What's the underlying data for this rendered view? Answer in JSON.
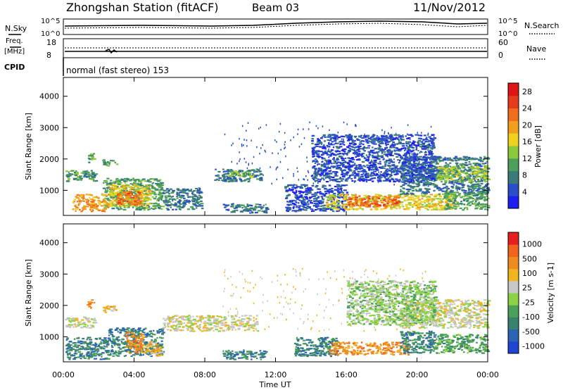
{
  "header": {
    "title": "Zhongshan Station (fitACF)",
    "beam": "Beam 03",
    "date": "11/Nov/2012"
  },
  "top_panels": {
    "nsky_label": "N.Sky",
    "nsearch_label": "N.Search",
    "nave_label": "Nave",
    "freq_label_line1": "Freq.",
    "freq_label_line2": "[MHz]",
    "cpid_label": "CPID",
    "cpid_value": "normal (fast stereo) 153",
    "noise_ticks": [
      "10^5",
      "10^0"
    ],
    "freq_ticks": [
      "18",
      "8"
    ],
    "nave_ticks": [
      "60",
      "0"
    ]
  },
  "axes": {
    "ylabel": "Slant Range [km]",
    "xlabel": "Time UT",
    "y_ticks": [
      "1000",
      "2000",
      "3000",
      "4000"
    ],
    "x_ticks": [
      "00:00",
      "04:00",
      "08:00",
      "12:00",
      "16:00",
      "20:00",
      "00:00"
    ]
  },
  "colorbars": {
    "power": {
      "label": "Power [dB]",
      "ticks": [
        "4",
        "8",
        "12",
        "16",
        "20",
        "24",
        "28"
      ],
      "colors": [
        "#1e1ef0",
        "#2a4ec8",
        "#3a7a78",
        "#4ca05a",
        "#8cc83c",
        "#f0d21e",
        "#f0a01e",
        "#f06e1e",
        "#e63c1e",
        "#e01414"
      ]
    },
    "velocity": {
      "label": "Velocity [m s-1]",
      "ticks": [
        "1000",
        "500",
        "100",
        "25",
        "-25",
        "-100",
        "-500",
        "-1000"
      ],
      "colors": [
        "#1e46d2",
        "#2a64b4",
        "#3a8270",
        "#4aa05a",
        "#8cd246",
        "#c8c8c8",
        "#f0b41e",
        "#f08c1e",
        "#f0641e",
        "#e61e1e"
      ]
    }
  },
  "chart_data": {
    "type": "heatmap",
    "x_range_hours": [
      0,
      24
    ],
    "y_range_km": [
      200,
      4600
    ],
    "power_blobs": [
      {
        "t0": 0.1,
        "t1": 1.8,
        "r0": 1300,
        "r1": 1650,
        "level": 3
      },
      {
        "t0": 0.1,
        "t1": 1.8,
        "r0": 1450,
        "r1": 1550,
        "level": 2
      },
      {
        "t0": 1.3,
        "t1": 1.7,
        "r0": 1900,
        "r1": 2200,
        "level": 3
      },
      {
        "t0": 2.2,
        "t1": 3.0,
        "r0": 1800,
        "r1": 2000,
        "level": 3
      },
      {
        "t0": 2.2,
        "t1": 5.6,
        "r0": 400,
        "r1": 1400,
        "level": 3
      },
      {
        "t0": 2.5,
        "t1": 4.8,
        "r0": 500,
        "r1": 1200,
        "level": 5
      },
      {
        "t0": 3.0,
        "t1": 4.3,
        "r0": 550,
        "r1": 1000,
        "level": 7
      },
      {
        "t0": 0.5,
        "t1": 2.5,
        "r0": 350,
        "r1": 900,
        "level": 6
      },
      {
        "t0": 5.6,
        "t1": 7.8,
        "r0": 400,
        "r1": 1100,
        "level": 2
      },
      {
        "t0": 8.5,
        "t1": 11.2,
        "r0": 1300,
        "r1": 1700,
        "level": 2
      },
      {
        "t0": 9.3,
        "t1": 10.6,
        "r0": 1450,
        "r1": 1650,
        "level": 4
      },
      {
        "t0": 9.0,
        "t1": 11.5,
        "r0": 300,
        "r1": 600,
        "level": 2
      },
      {
        "t0": 12.5,
        "t1": 16.0,
        "r0": 350,
        "r1": 1200,
        "level": 1
      },
      {
        "t0": 14.8,
        "t1": 22.0,
        "r0": 400,
        "r1": 900,
        "level": 5
      },
      {
        "t0": 16.0,
        "t1": 19.0,
        "r0": 500,
        "r1": 850,
        "level": 7
      },
      {
        "t0": 19.0,
        "t1": 24.0,
        "r0": 900,
        "r1": 2100,
        "level": 2
      },
      {
        "t0": 21.0,
        "t1": 24.0,
        "r0": 1300,
        "r1": 1800,
        "level": 4
      },
      {
        "t0": 14.0,
        "t1": 21.0,
        "r0": 1300,
        "r1": 2800,
        "level": 1
      },
      {
        "t0": 21.5,
        "t1": 24.0,
        "r0": 400,
        "r1": 1000,
        "level": 3
      }
    ],
    "velocity_blobs": [
      {
        "t0": 0.1,
        "t1": 1.8,
        "r0": 1300,
        "r1": 1650,
        "level": 5
      },
      {
        "t0": 0.1,
        "t1": 2.5,
        "r0": 300,
        "r1": 1000,
        "level": 2
      },
      {
        "t0": 1.3,
        "t1": 1.7,
        "r0": 1900,
        "r1": 2200,
        "level": 7
      },
      {
        "t0": 2.2,
        "t1": 3.1,
        "r0": 1800,
        "r1": 2000,
        "level": 6
      },
      {
        "t0": 2.5,
        "t1": 5.6,
        "r0": 400,
        "r1": 1300,
        "level": 2
      },
      {
        "t0": 3.5,
        "t1": 4.5,
        "r0": 500,
        "r1": 1200,
        "level": 7
      },
      {
        "t0": 4.6,
        "t1": 5.5,
        "r0": 400,
        "r1": 900,
        "level": 6
      },
      {
        "t0": 5.6,
        "t1": 11.0,
        "r0": 1200,
        "r1": 1700,
        "level": 5
      },
      {
        "t0": 9.0,
        "t1": 11.5,
        "r0": 300,
        "r1": 600,
        "level": 2
      },
      {
        "t0": 13.0,
        "t1": 15.5,
        "r0": 400,
        "r1": 1000,
        "level": 2
      },
      {
        "t0": 15.0,
        "t1": 19.5,
        "r0": 450,
        "r1": 850,
        "level": 7
      },
      {
        "t0": 19.0,
        "t1": 21.0,
        "r0": 500,
        "r1": 1200,
        "level": 2
      },
      {
        "t0": 19.0,
        "t1": 24.0,
        "r0": 1300,
        "r1": 2200,
        "level": 5
      },
      {
        "t0": 21.0,
        "t1": 24.0,
        "r0": 500,
        "r1": 1100,
        "level": 3
      },
      {
        "t0": 16.0,
        "t1": 21.0,
        "r0": 1400,
        "r1": 2800,
        "level": 4
      }
    ]
  }
}
